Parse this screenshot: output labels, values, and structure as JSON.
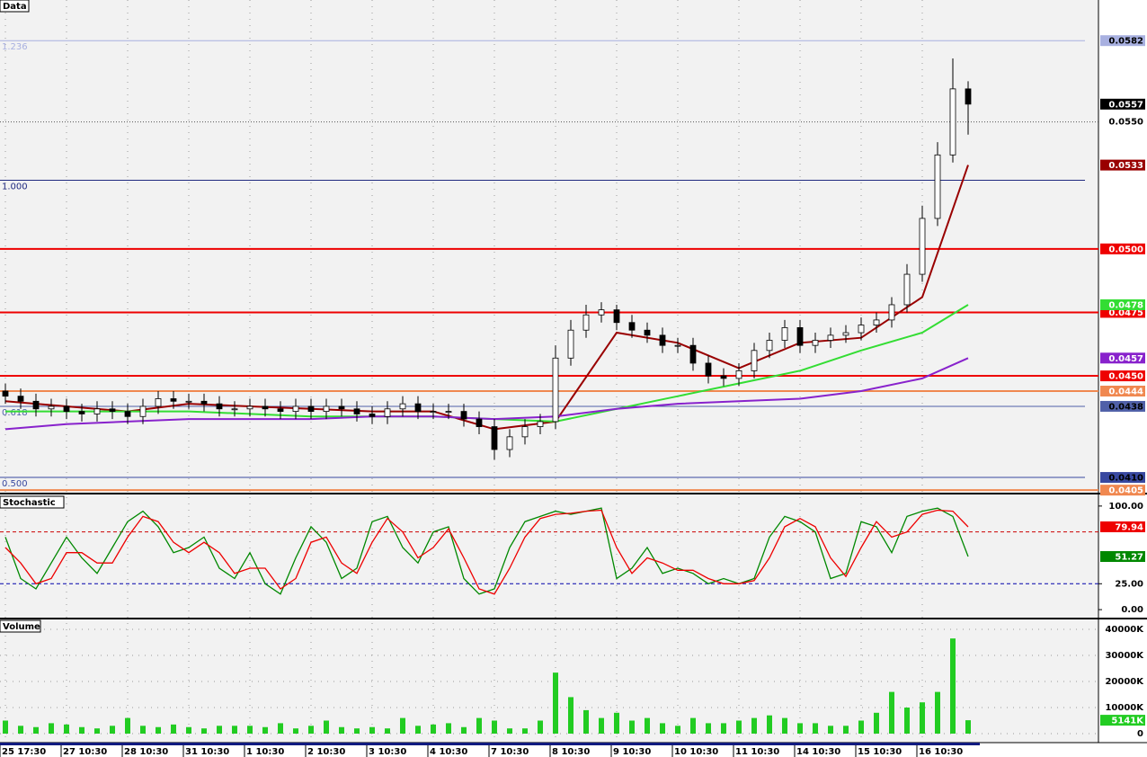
{
  "chart_data": [
    {
      "type": "candlestick",
      "title": "Data",
      "open": [
        0.0444,
        0.0442,
        0.044,
        0.0437,
        0.0438,
        0.0436,
        0.0435,
        0.0437,
        0.0436,
        0.0434,
        0.0438,
        0.0441,
        0.044,
        0.044,
        0.0439,
        0.0437,
        0.0437,
        0.0438,
        0.0437,
        0.0436,
        0.0438,
        0.0436,
        0.0438,
        0.0437,
        0.0435,
        0.0434,
        0.0437,
        0.0439,
        0.0436,
        0.0436,
        0.0436,
        0.0433,
        0.043,
        0.0421,
        0.0426,
        0.043,
        0.0432,
        0.0457,
        0.0468,
        0.0474,
        0.0476,
        0.0471,
        0.0468,
        0.0466,
        0.0462,
        0.0462,
        0.0455,
        0.045,
        0.0449,
        0.0452,
        0.046,
        0.0464,
        0.0469,
        0.0462,
        0.0464,
        0.0466,
        0.0467,
        0.047,
        0.0472,
        0.0478,
        0.049,
        0.0512,
        0.0537,
        0.0563
      ],
      "high": [
        0.0447,
        0.0445,
        0.0443,
        0.0441,
        0.0441,
        0.0439,
        0.044,
        0.044,
        0.0439,
        0.0441,
        0.0444,
        0.0444,
        0.0443,
        0.0443,
        0.0442,
        0.044,
        0.0441,
        0.0441,
        0.044,
        0.0441,
        0.0441,
        0.0441,
        0.0441,
        0.044,
        0.0438,
        0.044,
        0.0442,
        0.0442,
        0.0439,
        0.0439,
        0.0439,
        0.0436,
        0.0433,
        0.0429,
        0.0433,
        0.0435,
        0.0462,
        0.0472,
        0.0478,
        0.0479,
        0.0478,
        0.0474,
        0.0471,
        0.0469,
        0.0465,
        0.0465,
        0.0458,
        0.0453,
        0.0455,
        0.0463,
        0.0467,
        0.0472,
        0.0472,
        0.0467,
        0.0469,
        0.047,
        0.0473,
        0.0475,
        0.0481,
        0.0494,
        0.0517,
        0.0542,
        0.0575,
        0.0566
      ],
      "low": [
        0.0439,
        0.0437,
        0.0434,
        0.0434,
        0.0433,
        0.0432,
        0.0432,
        0.0433,
        0.0431,
        0.0431,
        0.0435,
        0.0437,
        0.0437,
        0.0436,
        0.0434,
        0.0434,
        0.0434,
        0.0434,
        0.0433,
        0.0433,
        0.0433,
        0.0433,
        0.0434,
        0.0432,
        0.0431,
        0.0431,
        0.0434,
        0.0433,
        0.0433,
        0.0433,
        0.043,
        0.0427,
        0.0417,
        0.0418,
        0.0423,
        0.0427,
        0.0429,
        0.0454,
        0.0465,
        0.0471,
        0.0468,
        0.0465,
        0.0463,
        0.0459,
        0.0459,
        0.0452,
        0.0447,
        0.0446,
        0.0446,
        0.0449,
        0.0457,
        0.0461,
        0.0459,
        0.0459,
        0.0461,
        0.0463,
        0.0464,
        0.0467,
        0.0469,
        0.0475,
        0.0487,
        0.0509,
        0.0534,
        0.0545
      ],
      "close": [
        0.0442,
        0.044,
        0.0437,
        0.0438,
        0.0436,
        0.0435,
        0.0437,
        0.0436,
        0.0434,
        0.0438,
        0.0441,
        0.044,
        0.044,
        0.0439,
        0.0437,
        0.0437,
        0.0438,
        0.0437,
        0.0436,
        0.0438,
        0.0436,
        0.0438,
        0.0437,
        0.0435,
        0.0434,
        0.0437,
        0.0439,
        0.0436,
        0.0436,
        0.0436,
        0.0433,
        0.043,
        0.0421,
        0.0426,
        0.043,
        0.0432,
        0.0457,
        0.0468,
        0.0474,
        0.0476,
        0.0471,
        0.0468,
        0.0466,
        0.0462,
        0.0462,
        0.0455,
        0.045,
        0.0449,
        0.0452,
        0.046,
        0.0464,
        0.0469,
        0.0462,
        0.0464,
        0.0466,
        0.0467,
        0.047,
        0.0472,
        0.0478,
        0.049,
        0.0512,
        0.0537,
        0.0563,
        0.0557
      ],
      "color_up": "#ffffff",
      "color_down": "#000000",
      "last_color": "#000000",
      "ylim": [
        0.0404,
        0.0598
      ],
      "yticks": [
        {
          "value": 0.055,
          "label": "0.0550"
        }
      ],
      "series": [
        {
          "color": "#990000",
          "x": [
            0,
            4,
            8,
            12,
            16,
            20,
            24,
            28,
            32,
            36,
            40,
            44,
            48,
            52,
            56,
            60,
            63
          ],
          "values": [
            0.044,
            0.0438,
            0.0436,
            0.0439,
            0.0438,
            0.0437,
            0.0436,
            0.0436,
            0.0429,
            0.0432,
            0.0467,
            0.0463,
            0.0453,
            0.0463,
            0.0465,
            0.0481,
            0.0533
          ]
        },
        {
          "color": "#33dd33",
          "x": [
            0,
            4,
            8,
            12,
            16,
            20,
            24,
            28,
            32,
            36,
            40,
            44,
            48,
            52,
            56,
            60,
            63
          ],
          "values": [
            0.0436,
            0.0436,
            0.0436,
            0.0436,
            0.0435,
            0.0434,
            0.0434,
            0.0434,
            0.0433,
            0.0432,
            0.0437,
            0.0442,
            0.0447,
            0.0452,
            0.046,
            0.0467,
            0.0478
          ]
        },
        {
          "color": "#8822cc",
          "x": [
            0,
            4,
            8,
            12,
            16,
            20,
            24,
            28,
            32,
            36,
            40,
            44,
            48,
            52,
            56,
            60,
            63
          ],
          "values": [
            0.0429,
            0.0431,
            0.0432,
            0.0433,
            0.0433,
            0.0433,
            0.0434,
            0.0434,
            0.0433,
            0.0434,
            0.0437,
            0.0439,
            0.044,
            0.0441,
            0.0444,
            0.0449,
            0.0457
          ]
        }
      ],
      "levels": [
        {
          "value": 0.05,
          "label": "0.0500",
          "color": "#ee0000"
        },
        {
          "value": 0.0475,
          "color": "#ee0000"
        },
        {
          "value": 0.045,
          "label": "0.0450",
          "color": "#ee0000"
        },
        {
          "value": 0.0444,
          "color": "#f08850"
        },
        {
          "value": 0.0405,
          "color": "#f08850"
        }
      ],
      "fib_levels": [
        {
          "ratio": "1.236",
          "value": 0.0582,
          "color": "#a8b0e0",
          "tag": true
        },
        {
          "ratio": "1.000",
          "value": 0.0527,
          "color": "#202a80",
          "tag": false
        },
        {
          "ratio": "0.618",
          "value": 0.0438,
          "color": "#5060a8",
          "tag": true
        },
        {
          "ratio": "0.500",
          "value": 0.041,
          "label": "0.0410",
          "color": "#3848a0",
          "tag": true
        }
      ]
    },
    {
      "type": "line",
      "title": "Stochastic",
      "ylim": [
        -8.6,
        110.3
      ],
      "yticks": [
        {
          "value": 0,
          "label": "0.00"
        },
        {
          "value": 25,
          "label": "25.00"
        },
        {
          "value": 100,
          "label": "100.00"
        }
      ],
      "levels": [
        {
          "value": 75,
          "color": "#cc0000"
        },
        {
          "value": 25,
          "color": "#0000aa"
        }
      ],
      "series": [
        {
          "color": "#008800",
          "values": [
            70,
            30,
            20,
            45,
            70,
            50,
            35,
            60,
            85,
            95,
            80,
            55,
            60,
            70,
            40,
            30,
            55,
            25,
            15,
            50,
            80,
            65,
            30,
            40,
            85,
            90,
            60,
            45,
            75,
            80,
            30,
            15,
            20,
            60,
            85,
            90,
            95,
            92,
            95,
            98,
            30,
            40,
            60,
            35,
            40,
            35,
            25,
            30,
            25,
            30,
            70,
            90,
            85,
            75,
            30,
            35,
            85,
            80,
            55,
            90,
            95,
            98,
            90,
            51.27
          ]
        },
        {
          "color": "#ee0000",
          "values": [
            60,
            45,
            25,
            30,
            55,
            55,
            45,
            45,
            70,
            90,
            85,
            65,
            55,
            65,
            55,
            35,
            40,
            40,
            20,
            30,
            65,
            70,
            45,
            35,
            65,
            88,
            75,
            50,
            60,
            78,
            50,
            20,
            15,
            40,
            70,
            88,
            92,
            93,
            95,
            96,
            60,
            35,
            50,
            45,
            38,
            38,
            30,
            25,
            25,
            28,
            50,
            80,
            88,
            80,
            50,
            32,
            60,
            85,
            70,
            75,
            92,
            96,
            95,
            79.94
          ]
        }
      ]
    },
    {
      "type": "bar",
      "title": "Volume",
      "categories": [
        "25 17:30",
        null,
        null,
        null,
        "27 10:30",
        null,
        null,
        null,
        "28 10:30",
        null,
        null,
        null,
        "31 10:30",
        null,
        null,
        null,
        "1 10:30",
        null,
        null,
        null,
        "2 10:30",
        null,
        null,
        null,
        "3 10:30",
        null,
        null,
        null,
        "4 10:30",
        null,
        null,
        null,
        "7 10:30",
        null,
        null,
        null,
        "8 10:30",
        null,
        null,
        null,
        "9 10:30",
        null,
        null,
        null,
        "10 10:30",
        null,
        null,
        null,
        "11 10:30",
        null,
        null,
        null,
        "14 10:30",
        null,
        null,
        null,
        "15 10:30",
        null,
        null,
        null,
        "16 10:30",
        null,
        null,
        null
      ],
      "values": [
        5000,
        3000,
        2500,
        4000,
        3500,
        2500,
        2000,
        3000,
        6000,
        3000,
        2500,
        3500,
        2500,
        2000,
        3000,
        3000,
        3000,
        2500,
        4000,
        2000,
        3000,
        5000,
        2500,
        2000,
        2500,
        2000,
        6000,
        3000,
        3500,
        4000,
        2500,
        6000,
        5000,
        2000,
        2000,
        5000,
        23400,
        14000,
        9000,
        6000,
        8000,
        5000,
        6000,
        4000,
        3000,
        6000,
        4000,
        4000,
        5000,
        6000,
        7000,
        6000,
        4000,
        4000,
        3000,
        3000,
        5000,
        8000,
        16000,
        10000,
        12000,
        16000,
        36500,
        5141
      ],
      "last_label": "5141K",
      "color": "#22cc22",
      "ylim": [
        0,
        43800
      ],
      "yticks": [
        0,
        {
          "value": 10000,
          "label": "10000K"
        },
        {
          "value": 20000,
          "label": "20000K"
        },
        {
          "value": 30000,
          "label": "30000K"
        },
        {
          "value": 40000,
          "label": "40000K"
        }
      ]
    }
  ]
}
